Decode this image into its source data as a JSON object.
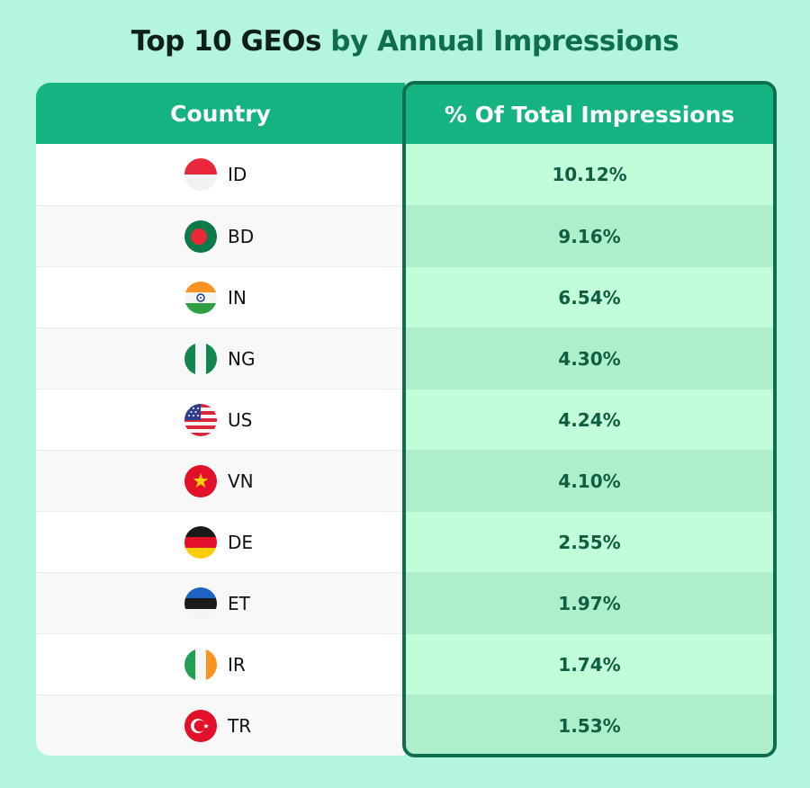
{
  "title": {
    "part1": "Top 10 GEOs",
    "part2": "by Annual Impressions"
  },
  "chart_data": {
    "type": "table",
    "title": "Top 10 GEOs by Annual Impressions",
    "columns": [
      "Country",
      "% Of Total Impressions"
    ],
    "rows": [
      {
        "country": "ID",
        "flag": "indonesia-flag-icon",
        "percent": "10.12%",
        "value": 10.12
      },
      {
        "country": "BD",
        "flag": "bangladesh-flag-icon",
        "percent": "9.16%",
        "value": 9.16
      },
      {
        "country": "IN",
        "flag": "india-flag-icon",
        "percent": "6.54%",
        "value": 6.54
      },
      {
        "country": "NG",
        "flag": "nigeria-flag-icon",
        "percent": "4.30%",
        "value": 4.3
      },
      {
        "country": "US",
        "flag": "usa-flag-icon",
        "percent": "4.24%",
        "value": 4.24
      },
      {
        "country": "VN",
        "flag": "vietnam-flag-icon",
        "percent": "4.10%",
        "value": 4.1
      },
      {
        "country": "DE",
        "flag": "germany-flag-icon",
        "percent": "2.55%",
        "value": 2.55
      },
      {
        "country": "ET",
        "flag": "estonia-flag-icon",
        "percent": "1.97%",
        "value": 1.97
      },
      {
        "country": "IR",
        "flag": "ireland-flag-icon",
        "percent": "1.74%",
        "value": 1.74
      },
      {
        "country": "TR",
        "flag": "turkey-flag-icon",
        "percent": "1.53%",
        "value": 1.53
      }
    ]
  },
  "colors": {
    "background": "#b3f5df",
    "header": "#15b381",
    "accent_dark": "#0f6e4f",
    "highlight_cell": "#c2fdd9",
    "highlight_cell_alt": "#aeefcb"
  }
}
